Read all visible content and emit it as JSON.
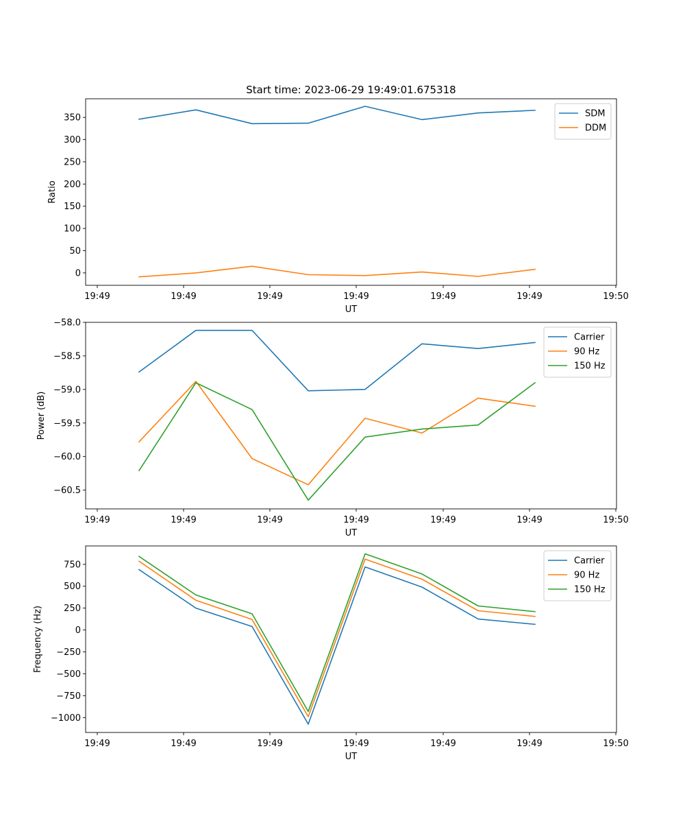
{
  "chart_data": [
    {
      "type": "line",
      "title": "Start time: 2023-06-29 19:49:01.675318",
      "xlabel": "UT",
      "ylabel": "Ratio",
      "x_tick_labels": [
        "19:49",
        "19:49",
        "19:49",
        "19:49",
        "19:49",
        "19:49",
        "19:49",
        "19:50"
      ],
      "y_ticks": [
        0,
        50,
        100,
        150,
        200,
        250,
        300,
        350
      ],
      "y_tick_labels": [
        "0",
        "50",
        "100",
        "150",
        "200",
        "250",
        "300",
        "350"
      ],
      "ylim": [
        -28,
        392
      ],
      "grid": false,
      "legend_position": "top-right",
      "series": [
        {
          "name": "SDM",
          "color": "#1f77b4",
          "values": [
            346,
            367,
            336,
            337,
            375,
            345,
            360,
            366
          ]
        },
        {
          "name": "DDM",
          "color": "#ff7f0e",
          "values": [
            -9,
            0,
            15,
            -4,
            -6,
            2,
            -8,
            8
          ]
        }
      ]
    },
    {
      "type": "line",
      "title": "",
      "xlabel": "UT",
      "ylabel": "Power (dB)",
      "x_tick_labels": [
        "19:49",
        "19:49",
        "19:49",
        "19:49",
        "19:49",
        "19:49",
        "19:49",
        "19:50"
      ],
      "y_ticks": [
        -58.0,
        -58.5,
        -59.0,
        -59.5,
        -60.0,
        -60.5
      ],
      "y_tick_labels": [
        "−58.0",
        "−58.5",
        "−59.0",
        "−59.5",
        "−60.0",
        "−60.5"
      ],
      "ylim": [
        -60.78,
        -58.0
      ],
      "grid": false,
      "legend_position": "top-right",
      "series": [
        {
          "name": "Carrier",
          "color": "#1f77b4",
          "values": [
            -58.74,
            -58.12,
            -58.12,
            -59.02,
            -59.0,
            -58.32,
            -58.39,
            -58.3
          ]
        },
        {
          "name": "90 Hz",
          "color": "#ff7f0e",
          "values": [
            -59.78,
            -58.88,
            -60.03,
            -60.42,
            -59.43,
            -59.65,
            -59.13,
            -59.25
          ]
        },
        {
          "name": "150 Hz",
          "color": "#2ca02c",
          "values": [
            -60.21,
            -58.9,
            -59.3,
            -60.65,
            -59.71,
            -59.59,
            -59.53,
            -58.9
          ]
        }
      ]
    },
    {
      "type": "line",
      "title": "",
      "xlabel": "UT",
      "ylabel": "Frequency (Hz)",
      "x_tick_labels": [
        "19:49",
        "19:49",
        "19:49",
        "19:49",
        "19:49",
        "19:49",
        "19:49",
        "19:50"
      ],
      "y_ticks": [
        750,
        500,
        250,
        0,
        -250,
        -500,
        -750,
        -1000
      ],
      "y_tick_labels": [
        "750",
        "500",
        "250",
        "0",
        "−250",
        "−500",
        "−750",
        "−1000"
      ],
      "ylim": [
        -1170,
        960
      ],
      "grid": false,
      "legend_position": "top-right",
      "series": [
        {
          "name": "Carrier",
          "color": "#1f77b4",
          "values": [
            690,
            250,
            40,
            -1075,
            720,
            490,
            125,
            65
          ]
        },
        {
          "name": "90 Hz",
          "color": "#ff7f0e",
          "values": [
            785,
            340,
            120,
            -990,
            810,
            580,
            220,
            155
          ]
        },
        {
          "name": "150 Hz",
          "color": "#2ca02c",
          "values": [
            840,
            400,
            185,
            -930,
            870,
            640,
            275,
            210
          ]
        }
      ]
    }
  ]
}
